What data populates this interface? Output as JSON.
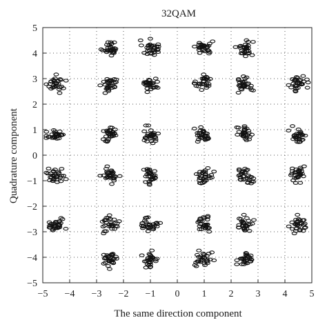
{
  "chart_data": {
    "type": "scatter",
    "title": "32QAM",
    "xlabel": "The same direction component",
    "ylabel": "Quadrature component",
    "xlim": [
      -5,
      5
    ],
    "ylim": [
      -5,
      5
    ],
    "x_ticks": [
      -5,
      -4,
      -3,
      -2,
      -1,
      0,
      1,
      2,
      3,
      4,
      5
    ],
    "y_ticks": [
      -5,
      -4,
      -3,
      -2,
      -1,
      0,
      1,
      2,
      3,
      4,
      5
    ],
    "grid": "dotted",
    "marker": "hollow-ellipse",
    "samples_per_cluster": 30,
    "cluster_spread": 0.28,
    "constellation_points": [
      [
        -2.5,
        4.2
      ],
      [
        -1,
        4.2
      ],
      [
        1,
        4.2
      ],
      [
        2.5,
        4.2
      ],
      [
        -4.5,
        2.8
      ],
      [
        -2.5,
        2.8
      ],
      [
        -1,
        2.8
      ],
      [
        1,
        2.8
      ],
      [
        2.5,
        2.8
      ],
      [
        4.5,
        2.8
      ],
      [
        -4.5,
        0.8
      ],
      [
        -2.5,
        0.8
      ],
      [
        -1,
        0.8
      ],
      [
        1,
        0.8
      ],
      [
        2.5,
        0.8
      ],
      [
        4.5,
        0.8
      ],
      [
        -4.5,
        -0.8
      ],
      [
        -2.5,
        -0.8
      ],
      [
        -1,
        -0.8
      ],
      [
        1,
        -0.8
      ],
      [
        2.5,
        -0.8
      ],
      [
        4.5,
        -0.8
      ],
      [
        -4.5,
        -2.7
      ],
      [
        -2.5,
        -2.7
      ],
      [
        -1,
        -2.7
      ],
      [
        1,
        -2.7
      ],
      [
        2.5,
        -2.7
      ],
      [
        4.5,
        -2.7
      ],
      [
        -2.5,
        -4.1
      ],
      [
        -1,
        -4.1
      ],
      [
        1,
        -4.1
      ],
      [
        2.5,
        -4.1
      ]
    ],
    "colors": {
      "marker": "#111111",
      "axis": "#222222",
      "grid": "#555555"
    }
  }
}
